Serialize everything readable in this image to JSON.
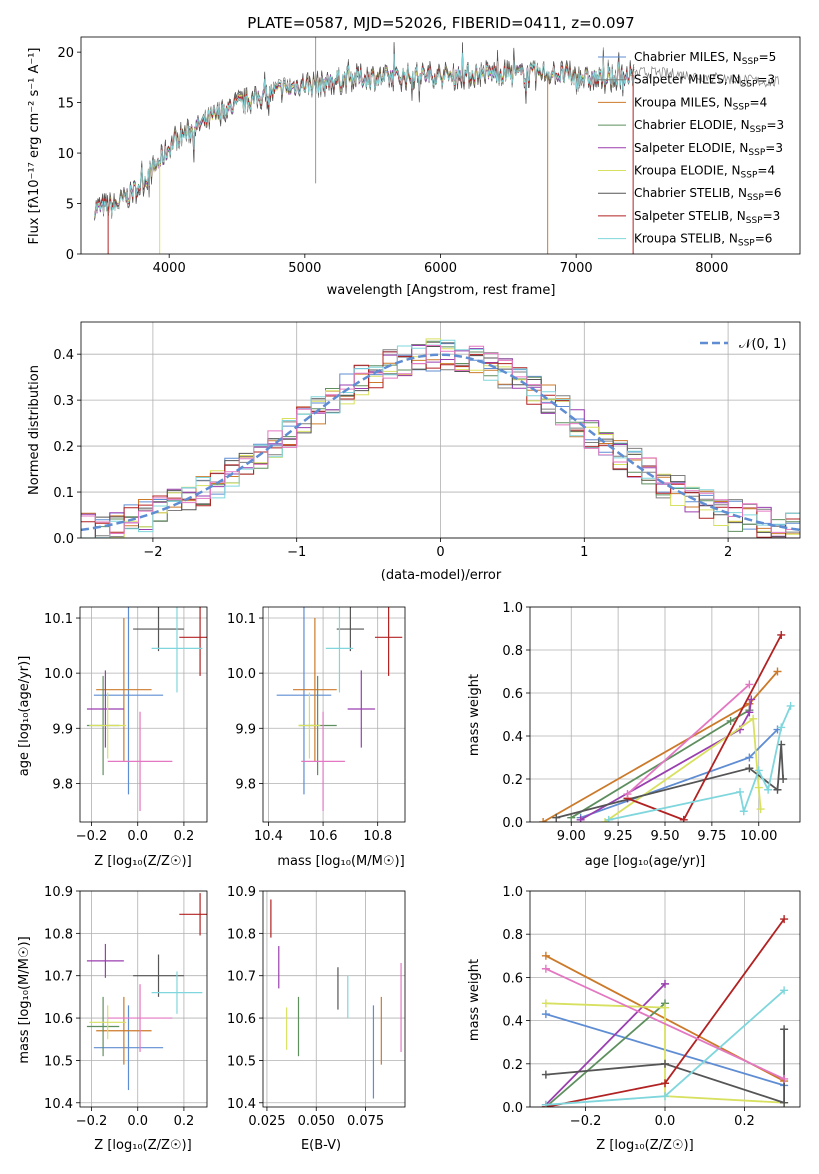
{
  "chart_data": [
    {
      "type": "line",
      "title": "PLATE=0587, MJD=52026, FIBERID=0411, z=0.097",
      "xlabel": "wavelength [Angstrom, rest frame]",
      "ylabel": "Flux [f$_\\lambda$10$^{-17}$ erg cm$^{-2}$ s$^{-1}$ A$^{-1}$]",
      "ylabel_display": "Flux [fλ10⁻¹⁷ erg cm⁻² s⁻¹ A⁻¹]",
      "xlim": [
        3350,
        8650
      ],
      "ylim": [
        0,
        21.5
      ],
      "xticks": [
        4000,
        5000,
        6000,
        7000,
        8000
      ],
      "yticks": [
        0,
        5,
        10,
        15,
        20
      ],
      "grid": false,
      "legend_position": "right",
      "series": [
        {
          "name": "Chabrier MILES, N$_{SSP}$=5",
          "label_display": "Chabrier MILES, N_SSP=5",
          "color": "#5f8dd3"
        },
        {
          "name": "Salpeter MILES, N$_{SSP}$=3",
          "label_display": "Salpeter MILES, N_SSP=3",
          "color": "#7f7f7f"
        },
        {
          "name": "Kroupa MILES, N$_{SSP}$=4",
          "label_display": "Kroupa MILES, N_SSP=4",
          "color": "#cc7a2a"
        },
        {
          "name": "Chabrier ELODIE, N$_{SSP}$=3",
          "label_display": "Chabrier ELODIE, N_SSP=3",
          "color": "#5e8f5e"
        },
        {
          "name": "Salpeter ELODIE, N$_{SSP}$=3",
          "label_display": "Salpeter ELODIE, N_SSP=3",
          "color": "#9a3fb0"
        },
        {
          "name": "Kroupa ELODIE, N$_{SSP}$=4",
          "label_display": "Kroupa ELODIE, N_SSP=4",
          "color": "#d8e060"
        },
        {
          "name": "Chabrier STELIB, N$_{SSP}$=6",
          "label_display": "Chabrier STELIB, N_SSP=6",
          "color": "#555555"
        },
        {
          "name": "Salpeter STELIB, N$_{SSP}$=3",
          "label_display": "Salpeter STELIB, N_SSP=3",
          "color": "#b22222"
        },
        {
          "name": "Kroupa STELIB, N$_{SSP}$=6",
          "label_display": "Kroupa STELIB, N_SSP=6",
          "color": "#7fd6dc"
        }
      ],
      "spectrum_continuum": {
        "x": [
          3450,
          3600,
          3800,
          3950,
          4050,
          4250,
          4500,
          4750,
          5000,
          5250,
          5500,
          5750,
          6000,
          6250,
          6500,
          6750,
          7000,
          7250,
          7500,
          7750,
          8000,
          8250,
          8500
        ],
        "y": [
          4.5,
          4.8,
          7.0,
          9.5,
          11.5,
          13.0,
          14.8,
          16.0,
          16.8,
          17.2,
          17.5,
          17.6,
          17.7,
          17.8,
          17.9,
          17.9,
          17.6,
          17.2,
          18.0,
          17.8,
          17.5,
          17.2,
          17.0
        ]
      }
    },
    {
      "type": "histogram",
      "xlabel": "(data-model)/error",
      "ylabel": "Normed distribution",
      "xlim": [
        -2.5,
        2.5
      ],
      "ylim": [
        0,
        0.47
      ],
      "xticks": [
        -2,
        -1,
        0,
        1,
        2
      ],
      "yticks": [
        0.0,
        0.1,
        0.2,
        0.3,
        0.4
      ],
      "xtick_labels": [
        "−2",
        "−1",
        "0",
        "1",
        "2"
      ],
      "ytick_labels": [
        "0.0",
        "0.1",
        "0.2",
        "0.3",
        "0.4"
      ],
      "grid": true,
      "legend_position": "top-right",
      "reference_curve": {
        "name": "$\\mathcal{N}(0,1)$",
        "label_display": "𝒩(0, 1)",
        "color": "#5f8dd3",
        "mean": 0,
        "sigma": 1
      },
      "bin_width": 0.1
    },
    {
      "type": "scatter",
      "xlabel": "Z [log$_{10}$($Z/Z_\\odot$)]",
      "xlabel_display": "Z [log₁₀(Z/Z☉)]",
      "ylabel": "age  [log$_{10}$($age/yr$)]",
      "ylabel_display": "age  [log₁₀(age/yr)]",
      "xlim": [
        -0.25,
        0.3
      ],
      "ylim": [
        9.73,
        10.12
      ],
      "xticks": [
        -0.2,
        0.0,
        0.2
      ],
      "xtick_labels": [
        "−0.2",
        "0.0",
        "0.2"
      ],
      "yticks": [
        9.8,
        9.9,
        10.0,
        10.1
      ],
      "ytick_labels": [
        "9.8",
        "9.9",
        "10.0",
        "10.1"
      ],
      "grid": true,
      "points": [
        {
          "x": -0.04,
          "y": 9.96,
          "xerr": 0.15,
          "yerr": 0.18,
          "color": "#5f8dd3"
        },
        {
          "x": -0.06,
          "y": 9.97,
          "xerr": 0.12,
          "yerr": 0.13,
          "color": "#cc7a2a"
        },
        {
          "x": -0.15,
          "y": 9.905,
          "xerr": 0.07,
          "yerr": 0.09,
          "color": "#5e8f5e"
        },
        {
          "x": -0.14,
          "y": 9.935,
          "xerr": 0.08,
          "yerr": 0.07,
          "color": "#9a3fb0"
        },
        {
          "x": -0.13,
          "y": 9.905,
          "xerr": 0.08,
          "yerr": 0.06,
          "color": "#d8e060"
        },
        {
          "x": 0.09,
          "y": 10.08,
          "xerr": 0.11,
          "yerr": 0.04,
          "color": "#555555"
        },
        {
          "x": 0.27,
          "y": 10.065,
          "xerr": 0.09,
          "yerr": 0.07,
          "color": "#b22222"
        },
        {
          "x": 0.17,
          "y": 10.045,
          "xerr": 0.11,
          "yerr": 0.08,
          "color": "#7fd6dc"
        },
        {
          "x": 0.01,
          "y": 9.84,
          "xerr": 0.14,
          "yerr": 0.09,
          "color": "#e377c2"
        }
      ]
    },
    {
      "type": "scatter",
      "xlabel": "mass [log$_{10}$($M/M_\\odot$)]",
      "xlabel_display": "mass [log₁₀(M/M☉)]",
      "xlim": [
        10.38,
        10.9
      ],
      "ylim": [
        9.73,
        10.12
      ],
      "xticks": [
        10.4,
        10.6,
        10.8
      ],
      "xtick_labels": [
        "10.4",
        "10.6",
        "10.8"
      ],
      "yticks": [
        9.8,
        9.9,
        10.0,
        10.1
      ],
      "ytick_labels": [
        "9.8",
        "9.9",
        "10.0",
        "10.1"
      ],
      "grid": true,
      "points": [
        {
          "x": 10.53,
          "y": 9.96,
          "xerr": 0.1,
          "yerr": 0.18,
          "color": "#5f8dd3"
        },
        {
          "x": 10.57,
          "y": 9.97,
          "xerr": 0.08,
          "yerr": 0.13,
          "color": "#cc7a2a"
        },
        {
          "x": 10.58,
          "y": 9.905,
          "xerr": 0.07,
          "yerr": 0.09,
          "color": "#5e8f5e"
        },
        {
          "x": 10.74,
          "y": 9.935,
          "xerr": 0.05,
          "yerr": 0.07,
          "color": "#9a3fb0"
        },
        {
          "x": 10.55,
          "y": 9.905,
          "xerr": 0.04,
          "yerr": 0.06,
          "color": "#d8e060"
        },
        {
          "x": 10.7,
          "y": 10.08,
          "xerr": 0.05,
          "yerr": 0.04,
          "color": "#555555"
        },
        {
          "x": 10.84,
          "y": 10.065,
          "xerr": 0.05,
          "yerr": 0.07,
          "color": "#b22222"
        },
        {
          "x": 10.66,
          "y": 10.045,
          "xerr": 0.05,
          "yerr": 0.08,
          "color": "#7fd6dc"
        },
        {
          "x": 10.6,
          "y": 9.84,
          "xerr": 0.08,
          "yerr": 0.09,
          "color": "#e377c2"
        }
      ]
    },
    {
      "type": "line",
      "xlabel": "age  [log$_{10}$($age/yr$)]",
      "xlabel_display": "age  [log₁₀(age/yr)]",
      "ylabel": "mass weight",
      "xlim": [
        8.78,
        10.22
      ],
      "ylim": [
        0,
        1
      ],
      "xticks": [
        9.0,
        9.25,
        9.5,
        9.75,
        10.0
      ],
      "xtick_labels": [
        "9.00",
        "9.25",
        "9.50",
        "9.75",
        "10.00"
      ],
      "yticks": [
        0.0,
        0.2,
        0.4,
        0.6,
        0.8,
        1.0
      ],
      "ytick_labels": [
        "0.0",
        "0.2",
        "0.4",
        "0.6",
        "0.8",
        "1.0"
      ],
      "grid": true,
      "series": [
        {
          "color": "#5f8dd3",
          "x": [
            9.05,
            9.95,
            10.1
          ],
          "y": [
            0.02,
            0.3,
            0.43
          ]
        },
        {
          "color": "#cc7a2a",
          "x": [
            8.85,
            9.95,
            10.1
          ],
          "y": [
            0.0,
            0.55,
            0.7
          ]
        },
        {
          "color": "#5e8f5e",
          "x": [
            9.0,
            9.85,
            9.95
          ],
          "y": [
            0.02,
            0.47,
            0.52
          ]
        },
        {
          "color": "#9a3fb0",
          "x": [
            9.05,
            9.9,
            9.95,
            9.96
          ],
          "y": [
            0.01,
            0.43,
            0.51,
            0.57
          ]
        },
        {
          "color": "#d8e060",
          "x": [
            9.18,
            9.97,
            10.0,
            10.01
          ],
          "y": [
            0.0,
            0.48,
            0.16,
            0.06
          ]
        },
        {
          "color": "#555555",
          "x": [
            8.92,
            9.95,
            10.1,
            10.12,
            10.13
          ],
          "y": [
            0.02,
            0.25,
            0.15,
            0.36,
            0.2
          ]
        },
        {
          "color": "#b22222",
          "x": [
            9.3,
            9.6,
            10.12
          ],
          "y": [
            0.11,
            0.01,
            0.87
          ]
        },
        {
          "color": "#7fd6dc",
          "x": [
            9.2,
            9.9,
            9.92,
            10.0,
            10.05,
            10.12,
            10.17
          ],
          "y": [
            0.01,
            0.14,
            0.05,
            0.24,
            0.15,
            0.44,
            0.54
          ]
        },
        {
          "color": "#e377c2",
          "x": [
            9.3,
            9.95
          ],
          "y": [
            0.13,
            0.64
          ]
        }
      ]
    },
    {
      "type": "scatter",
      "xlabel": "Z [log$_{10}$($Z/Z_\\odot$)]",
      "xlabel_display": "Z [log₁₀(Z/Z☉)]",
      "ylabel": "mass [log$_{10}$($M/M_\\odot$)]",
      "ylabel_display": "mass [log₁₀(M/M☉)]",
      "xlim": [
        -0.25,
        0.3
      ],
      "ylim": [
        10.39,
        10.9
      ],
      "xticks": [
        -0.2,
        0.0,
        0.2
      ],
      "xtick_labels": [
        "−0.2",
        "0.0",
        "0.2"
      ],
      "yticks": [
        10.4,
        10.5,
        10.6,
        10.7,
        10.8,
        10.9
      ],
      "ytick_labels": [
        "10.4",
        "10.5",
        "10.6",
        "10.7",
        "10.8",
        "10.9"
      ],
      "grid": true,
      "points": [
        {
          "x": -0.04,
          "y": 10.53,
          "xerr": 0.15,
          "yerr": 0.1,
          "color": "#5f8dd3"
        },
        {
          "x": -0.06,
          "y": 10.57,
          "xerr": 0.12,
          "yerr": 0.08,
          "color": "#cc7a2a"
        },
        {
          "x": -0.15,
          "y": 10.58,
          "xerr": 0.07,
          "yerr": 0.07,
          "color": "#5e8f5e"
        },
        {
          "x": -0.14,
          "y": 10.735,
          "xerr": 0.08,
          "yerr": 0.04,
          "color": "#9a3fb0"
        },
        {
          "x": -0.13,
          "y": 10.59,
          "xerr": 0.08,
          "yerr": 0.04,
          "color": "#d8e060"
        },
        {
          "x": 0.09,
          "y": 10.7,
          "xerr": 0.11,
          "yerr": 0.05,
          "color": "#555555"
        },
        {
          "x": 0.27,
          "y": 10.845,
          "xerr": 0.09,
          "yerr": 0.05,
          "color": "#b22222"
        },
        {
          "x": 0.17,
          "y": 10.66,
          "xerr": 0.11,
          "yerr": 0.05,
          "color": "#7fd6dc"
        },
        {
          "x": 0.01,
          "y": 10.6,
          "xerr": 0.14,
          "yerr": 0.08,
          "color": "#e377c2"
        }
      ]
    },
    {
      "type": "scatter",
      "xlabel": "E(B-V)",
      "xlim": [
        0.023,
        0.095
      ],
      "ylim": [
        10.39,
        10.9
      ],
      "xticks": [
        0.025,
        0.05,
        0.075
      ],
      "xtick_labels": [
        "0.025",
        "0.050",
        "0.075"
      ],
      "yticks": [
        10.4,
        10.5,
        10.6,
        10.7,
        10.8,
        10.9
      ],
      "ytick_labels": [
        "10.4",
        "10.5",
        "10.6",
        "10.7",
        "10.8",
        "10.9"
      ],
      "grid": true,
      "points": [
        {
          "x": 0.027,
          "y": 10.835,
          "xerr": 0,
          "yerr": 0.045,
          "color": "#b22222"
        },
        {
          "x": 0.031,
          "y": 10.72,
          "xerr": 0,
          "yerr": 0.05,
          "color": "#9a3fb0"
        },
        {
          "x": 0.035,
          "y": 10.575,
          "xerr": 0,
          "yerr": 0.05,
          "color": "#d8e060"
        },
        {
          "x": 0.041,
          "y": 10.58,
          "xerr": 0,
          "yerr": 0.07,
          "color": "#5e8f5e"
        },
        {
          "x": 0.061,
          "y": 10.67,
          "xerr": 0,
          "yerr": 0.05,
          "color": "#555555"
        },
        {
          "x": 0.066,
          "y": 10.65,
          "xerr": 0,
          "yerr": 0.05,
          "color": "#7fd6dc"
        },
        {
          "x": 0.079,
          "y": 10.52,
          "xerr": 0,
          "yerr": 0.11,
          "color": "#5f8dd3"
        },
        {
          "x": 0.083,
          "y": 10.57,
          "xerr": 0,
          "yerr": 0.08,
          "color": "#cc7a2a"
        },
        {
          "x": 0.093,
          "y": 10.625,
          "xerr": 0,
          "yerr": 0.105,
          "color": "#e377c2"
        }
      ]
    },
    {
      "type": "line",
      "xlabel": "Z [log$_{10}$($Z/Z_\\odot$)]",
      "xlabel_display": "Z [log₁₀(Z/Z☉)]",
      "ylabel": "mass weight",
      "xlim": [
        -0.34,
        0.34
      ],
      "ylim": [
        0,
        1
      ],
      "xticks": [
        -0.2,
        0.0,
        0.2
      ],
      "xtick_labels": [
        "−0.2",
        "0.0",
        "0.2"
      ],
      "yticks": [
        0.0,
        0.2,
        0.4,
        0.6,
        0.8,
        1.0
      ],
      "ytick_labels": [
        "0.0",
        "0.2",
        "0.4",
        "0.6",
        "0.8",
        "1.0"
      ],
      "grid": true,
      "series": [
        {
          "color": "#5f8dd3",
          "x": [
            -0.3,
            0.3
          ],
          "y": [
            0.43,
            0.1
          ]
        },
        {
          "color": "#cc7a2a",
          "x": [
            -0.3,
            0.3
          ],
          "y": [
            0.7,
            0.12
          ]
        },
        {
          "color": "#5e8f5e",
          "x": [
            -0.3,
            0.0
          ],
          "y": [
            0.0,
            0.48
          ]
        },
        {
          "color": "#9a3fb0",
          "x": [
            -0.3,
            0.0
          ],
          "y": [
            0.01,
            0.57
          ]
        },
        {
          "color": "#d8e060",
          "x": [
            -0.3,
            0.0,
            0.0,
            0.3
          ],
          "y": [
            0.48,
            0.46,
            0.05,
            0.02
          ]
        },
        {
          "color": "#555555",
          "x": [
            -0.3,
            0.0,
            0.3,
            0.3
          ],
          "y": [
            0.15,
            0.2,
            0.02,
            0.36
          ]
        },
        {
          "color": "#b22222",
          "x": [
            -0.3,
            0.0,
            0.3
          ],
          "y": [
            0.0,
            0.11,
            0.87
          ]
        },
        {
          "color": "#7fd6dc",
          "x": [
            -0.3,
            0.0,
            0.3
          ],
          "y": [
            0.01,
            0.05,
            0.54
          ]
        },
        {
          "color": "#e377c2",
          "x": [
            -0.3,
            0.3
          ],
          "y": [
            0.64,
            0.13
          ]
        }
      ]
    }
  ]
}
